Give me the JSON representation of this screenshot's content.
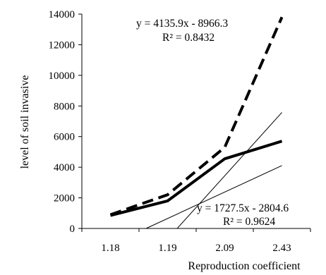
{
  "chart_data": {
    "type": "line",
    "xlabel": "Reproduction coefficient",
    "ylabel": "level of soil invasive",
    "categories": [
      "1.18",
      "1.19",
      "2.09",
      "2.43"
    ],
    "ylim": [
      0,
      14000
    ],
    "yticks": [
      0,
      2000,
      4000,
      6000,
      8000,
      10000,
      12000,
      14000
    ],
    "grid": false,
    "series": [
      {
        "style": "dashed",
        "color": "#000000",
        "values": [
          900,
          2200,
          5300,
          13800
        ]
      },
      {
        "style": "solid",
        "color": "#000000",
        "values": [
          850,
          1800,
          4550,
          5700
        ]
      }
    ],
    "trendlines": [
      {
        "slope": 4135.9,
        "intercept": -8966.3,
        "equation": "y = 4135.9x - 8966.3",
        "r2": "R² = 0.8432"
      },
      {
        "slope": 1727.5,
        "intercept": -2804.6,
        "equation": "y = 1727.5x - 2804.6",
        "r2": "R² = 0.9624"
      }
    ]
  }
}
